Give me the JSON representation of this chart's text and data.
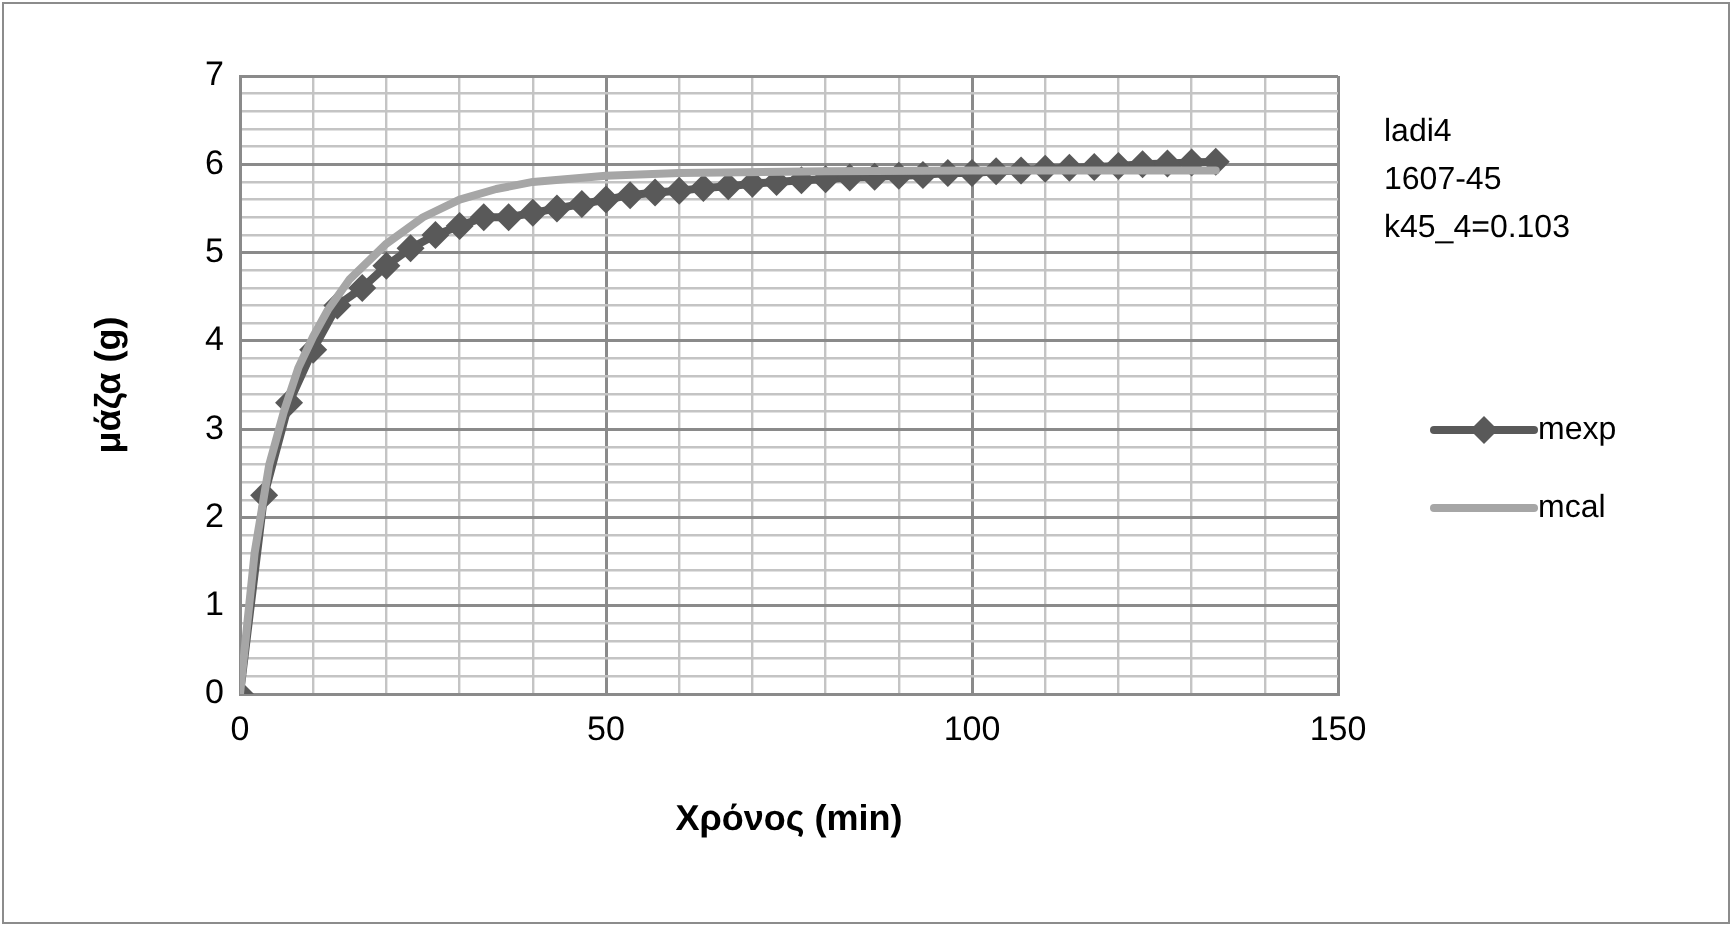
{
  "chart_data": {
    "type": "line",
    "xlabel": "Χρόνος (min)",
    "ylabel": "μάζα (g)",
    "annotations": [
      "ladi4",
      "1607-45",
      "k45_4=0.103"
    ],
    "xlim": [
      0,
      150
    ],
    "xticks": [
      0,
      {
        "value": 10,
        "label": null
      },
      {
        "value": 20,
        "label": null
      },
      {
        "value": 30,
        "label": null
      },
      {
        "value": 40,
        "label": null
      },
      50,
      {
        "value": 60,
        "label": null
      },
      {
        "value": 70,
        "label": null
      },
      {
        "value": 80,
        "label": null
      },
      {
        "value": 90,
        "label": null
      },
      100,
      {
        "value": 110,
        "label": null
      },
      {
        "value": 120,
        "label": null
      },
      {
        "value": 130,
        "label": null
      },
      {
        "value": 140,
        "label": null
      },
      150
    ],
    "ylim": [
      0,
      7
    ],
    "yticks": [
      0,
      {
        "value": 0.2,
        "label": null
      },
      {
        "value": 0.4,
        "label": null
      },
      {
        "value": 0.6,
        "label": null
      },
      {
        "value": 0.8,
        "label": null
      },
      1,
      {
        "value": 1.2,
        "label": null
      },
      {
        "value": 1.4,
        "label": null
      },
      {
        "value": 1.6,
        "label": null
      },
      {
        "value": 1.8,
        "label": null
      },
      2,
      {
        "value": 2.2,
        "label": null
      },
      {
        "value": 2.4,
        "label": null
      },
      {
        "value": 2.6,
        "label": null
      },
      {
        "value": 2.8,
        "label": null
      },
      3,
      {
        "value": 3.2,
        "label": null
      },
      {
        "value": 3.4,
        "label": null
      },
      {
        "value": 3.6,
        "label": null
      },
      {
        "value": 3.8,
        "label": null
      },
      4,
      {
        "value": 4.2,
        "label": null
      },
      {
        "value": 4.4,
        "label": null
      },
      {
        "value": 4.6,
        "label": null
      },
      {
        "value": 4.8,
        "label": null
      },
      5,
      {
        "value": 5.2,
        "label": null
      },
      {
        "value": 5.4,
        "label": null
      },
      {
        "value": 5.6,
        "label": null
      },
      {
        "value": 5.8,
        "label": null
      },
      6,
      {
        "value": 6.2,
        "label": null
      },
      {
        "value": 6.4,
        "label": null
      },
      {
        "value": 6.6,
        "label": null
      },
      {
        "value": 6.8,
        "label": null
      },
      7
    ],
    "grid": true,
    "legend": "right",
    "series": [
      {
        "name": "mexp",
        "color": "#595959",
        "marker": "diamond",
        "x": [
          0,
          3.3,
          6.7,
          10,
          13.3,
          16.7,
          20,
          23.3,
          26.7,
          30,
          33.3,
          36.7,
          40,
          43.3,
          46.7,
          50,
          53.3,
          56.7,
          60,
          63.3,
          66.7,
          70,
          73.3,
          76.7,
          80,
          83.3,
          86.7,
          90,
          93.3,
          96.7,
          100,
          103.3,
          106.7,
          110,
          113.3,
          116.7,
          120,
          123.3,
          126.7,
          130,
          133.3
        ],
        "values": [
          0,
          2.25,
          3.3,
          3.9,
          4.4,
          4.6,
          4.85,
          5.05,
          5.2,
          5.3,
          5.4,
          5.4,
          5.45,
          5.5,
          5.55,
          5.6,
          5.65,
          5.68,
          5.7,
          5.73,
          5.75,
          5.78,
          5.8,
          5.82,
          5.83,
          5.85,
          5.86,
          5.87,
          5.88,
          5.9,
          5.9,
          5.92,
          5.93,
          5.95,
          5.96,
          5.97,
          5.98,
          6.0,
          6.01,
          6.02,
          6.03
        ]
      },
      {
        "name": "mcal",
        "color": "#a6a6a6",
        "marker": "none",
        "x": [
          0,
          2,
          4,
          6,
          8,
          10,
          12,
          15,
          20,
          25,
          30,
          35,
          40,
          50,
          60,
          80,
          100,
          133.3
        ],
        "values": [
          0,
          1.6,
          2.6,
          3.2,
          3.7,
          4.05,
          4.35,
          4.7,
          5.1,
          5.4,
          5.6,
          5.72,
          5.8,
          5.87,
          5.9,
          5.92,
          5.93,
          5.93
        ]
      }
    ]
  }
}
